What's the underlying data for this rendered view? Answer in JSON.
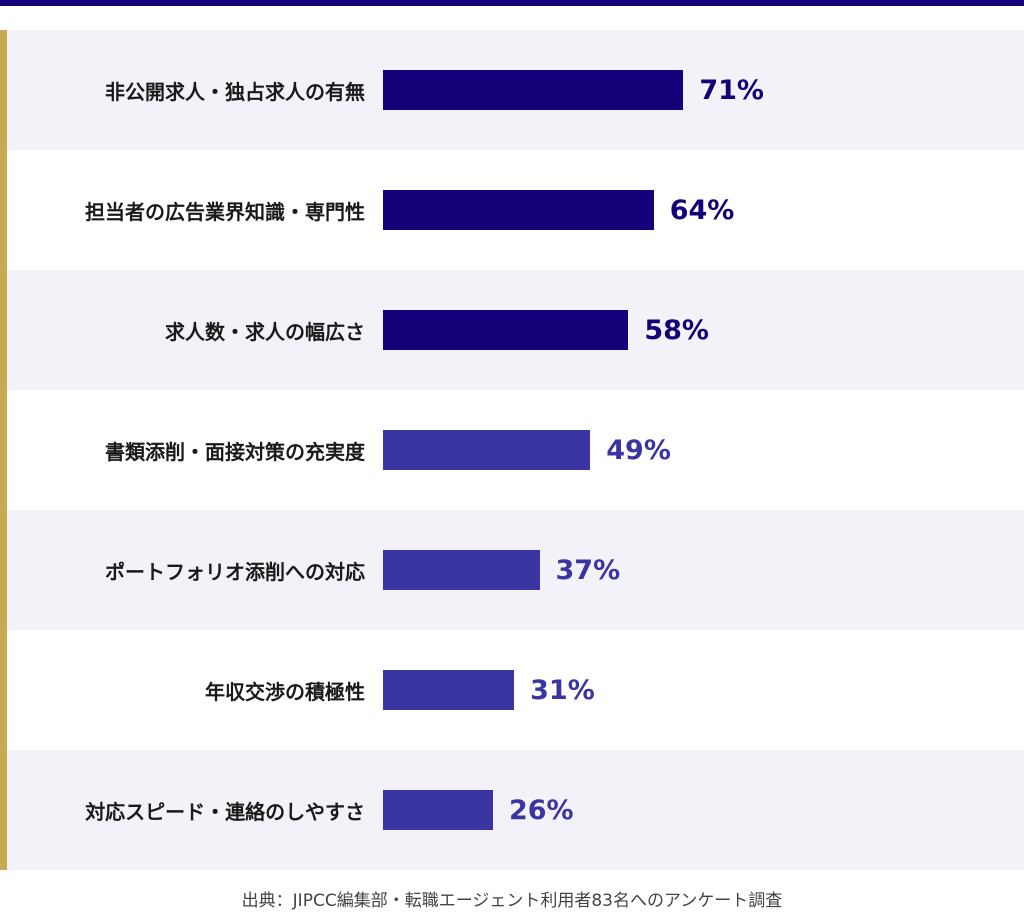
{
  "colors": {
    "top_rule": "#15007a",
    "accent": "#c8aa52",
    "row_shaded": "#f3f2f8",
    "row_plain": "#ffffff",
    "bar_strong": "#15007a",
    "bar_light": "#3b34a3"
  },
  "chart_data": {
    "type": "bar",
    "orientation": "horizontal",
    "categories": [
      "非公開求人・独占求人の有無",
      "担当者の広告業界知識・専門性",
      "求人数・求人の幅広さ",
      "書類添削・面接対策の充実度",
      "ポートフォリオ添削への対応",
      "年収交渉の積極性",
      "対応スピード・連絡のしやすさ"
    ],
    "values": [
      71,
      64,
      58,
      49,
      37,
      31,
      26
    ],
    "value_labels": [
      "71%",
      "64%",
      "58%",
      "49%",
      "37%",
      "31%",
      "26%"
    ],
    "emphasis": [
      "strong",
      "strong",
      "strong",
      "light",
      "light",
      "light",
      "light"
    ],
    "unit": "%",
    "xlim": [
      0,
      100
    ],
    "grid": false,
    "legend": "none"
  },
  "source_note": "出典：JIPCC編集部・転職エージェント利用者83名へのアンケート調査"
}
